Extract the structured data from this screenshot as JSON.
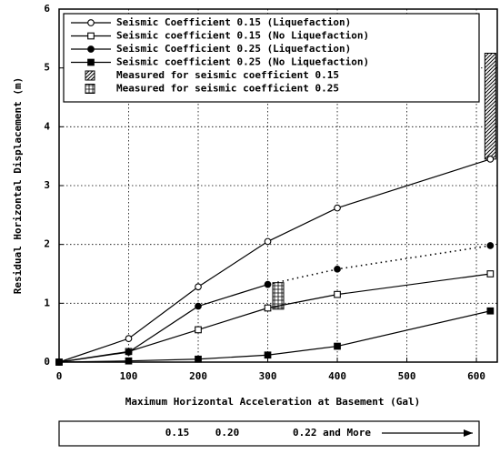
{
  "chart_data": {
    "type": "line",
    "xlabel": "Maximum Horizontal Acceleration at Basement (Gal)",
    "ylabel": "Residual Horizontal Displacement (m)",
    "x": [
      0,
      100,
      200,
      300,
      400,
      620
    ],
    "xlim": [
      0,
      630
    ],
    "ylim": [
      0,
      6
    ],
    "xticks": [
      0,
      100,
      200,
      300,
      400,
      500,
      600
    ],
    "yticks": [
      0,
      1,
      2,
      3,
      4,
      5,
      6
    ],
    "grid": true,
    "legend": "upper left",
    "series": [
      {
        "name": "Seismic Coefficient 0.15 (Liquefaction)",
        "color": "#000000",
        "marker": "circle",
        "filled": false,
        "values": [
          0,
          0.4,
          1.28,
          2.05,
          2.62,
          3.45
        ]
      },
      {
        "name": "Seismic coefficient 0.15 (No Liquefaction)",
        "color": "#000000",
        "marker": "square",
        "filled": false,
        "values": [
          0,
          0.18,
          0.55,
          0.92,
          1.15,
          1.5
        ]
      },
      {
        "name": "Seismic Coefficient 0.25 (Liquefaction)",
        "color": "#000000",
        "marker": "circle",
        "filled": true,
        "dotted_from_x": 300,
        "values": [
          0,
          0.17,
          0.95,
          1.32,
          1.58,
          1.98
        ]
      },
      {
        "name": "Seismic coefficient 0.25 (No Liquefaction)",
        "color": "#000000",
        "marker": "square",
        "filled": true,
        "values": [
          0,
          0.02,
          0.05,
          0.12,
          0.27,
          0.87
        ]
      }
    ],
    "measured": [
      {
        "name": "Measured for seismic coefficient 0.15",
        "pattern": "diagonal",
        "x": 620,
        "low": 3.45,
        "high": 5.25
      },
      {
        "name": "Measured for seismic coefficient 0.25",
        "pattern": "cross",
        "x": 315,
        "low": 0.9,
        "high": 1.35
      }
    ],
    "acceleration_band": {
      "labels": [
        "0.15",
        "0.20",
        "0.22 and More"
      ]
    }
  }
}
